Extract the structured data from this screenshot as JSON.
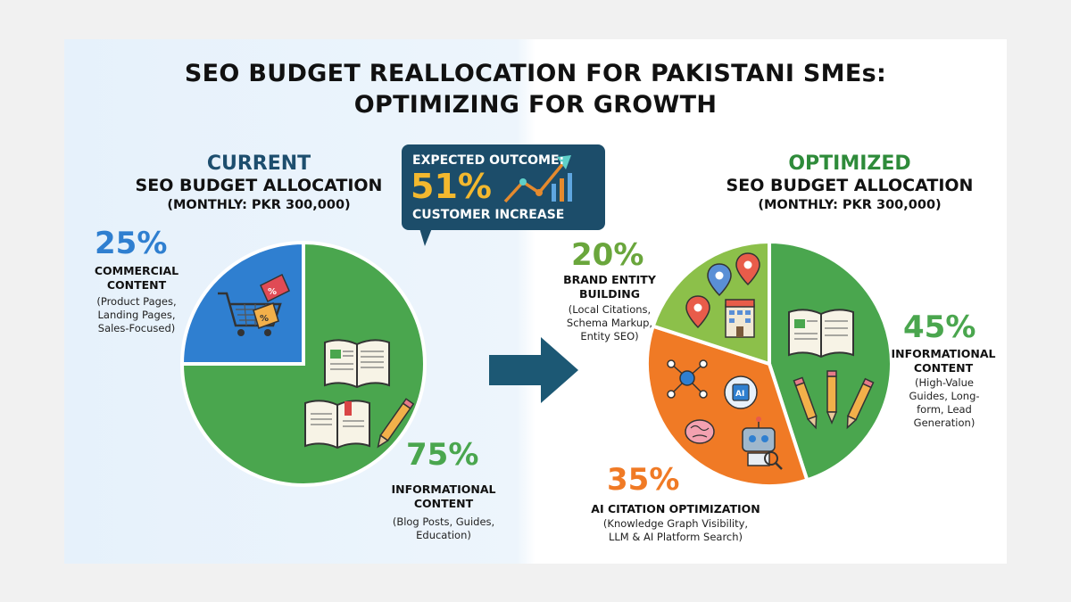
{
  "title_line1": "SEO BUDGET REALLOCATION FOR PAKISTANI SMEs:",
  "title_line2": "OPTIMIZING FOR GROWTH",
  "callout": {
    "line1": "EXPECTED OUTCOME:",
    "value": "51%",
    "line2": "CUSTOMER INCREASE"
  },
  "colors": {
    "green": "#4aa64e",
    "blue": "#2f7fd0",
    "orange": "#f07a25",
    "lightgreen": "#8cc04a",
    "callout": "#1c4d6a",
    "current_heading": "#1d4e6e",
    "optimized_heading": "#2e8b3a"
  },
  "current": {
    "heading1": "CURRENT",
    "heading2": "SEO BUDGET ALLOCATION",
    "heading3": "(MONTHLY: PKR 300,000)",
    "slices": [
      {
        "pct": "25%",
        "title1": "COMMERCIAL",
        "title2": "CONTENT",
        "sub1": "(Product Pages,",
        "sub2": "Landing Pages,",
        "sub3": "Sales-Focused)"
      },
      {
        "pct": "75%",
        "title1": "INFORMATIONAL",
        "title2": "CONTENT",
        "sub1": "(Blog Posts, Guides,",
        "sub2": "Education)"
      }
    ]
  },
  "optimized": {
    "heading1": "OPTIMIZED",
    "heading2": "SEO BUDGET ALLOCATION",
    "heading3": "(MONTHLY: PKR 300,000)",
    "slices": [
      {
        "pct": "20%",
        "title1": "BRAND ENTITY",
        "title2": "BUILDING",
        "sub1": "(Local Citations,",
        "sub2": "Schema Markup,",
        "sub3": "Entity SEO)"
      },
      {
        "pct": "45%",
        "title1": "INFORMATIONAL",
        "title2": "CONTENT",
        "sub1": "(High-Value",
        "sub2": "Guides, Long-",
        "sub3": "form, Lead",
        "sub4": "Generation)"
      },
      {
        "pct": "35%",
        "title1": "AI CITATION OPTIMIZATION",
        "sub1": "(Knowledge Graph Visibility,",
        "sub2": "LLM & AI Platform Search)"
      }
    ]
  },
  "icons": {
    "cart": "shopping-cart-icon",
    "tags": "price-tag-icon",
    "book": "open-book-icon",
    "pencil": "pencil-icon",
    "pin": "map-pin-icon",
    "building": "building-icon",
    "network": "network-icon",
    "ai_chip": "ai-chip-icon",
    "robot": "robot-icon",
    "brain": "brain-icon",
    "trend": "trend-chart-icon",
    "arrow": "right-arrow-icon"
  },
  "chart_data": [
    {
      "type": "pie",
      "title": "CURRENT SEO BUDGET ALLOCATION (MONTHLY: PKR 300,000)",
      "categories": [
        "COMMERCIAL CONTENT",
        "INFORMATIONAL CONTENT"
      ],
      "values": [
        25,
        75
      ],
      "colors": [
        "#2f7fd0",
        "#4aa64e"
      ]
    },
    {
      "type": "pie",
      "title": "OPTIMIZED SEO BUDGET ALLOCATION (MONTHLY: PKR 300,000)",
      "categories": [
        "INFORMATIONAL CONTENT",
        "AI CITATION OPTIMIZATION",
        "BRAND ENTITY BUILDING"
      ],
      "values": [
        45,
        35,
        20
      ],
      "colors": [
        "#4aa64e",
        "#f07a25",
        "#8cc04a"
      ]
    }
  ]
}
